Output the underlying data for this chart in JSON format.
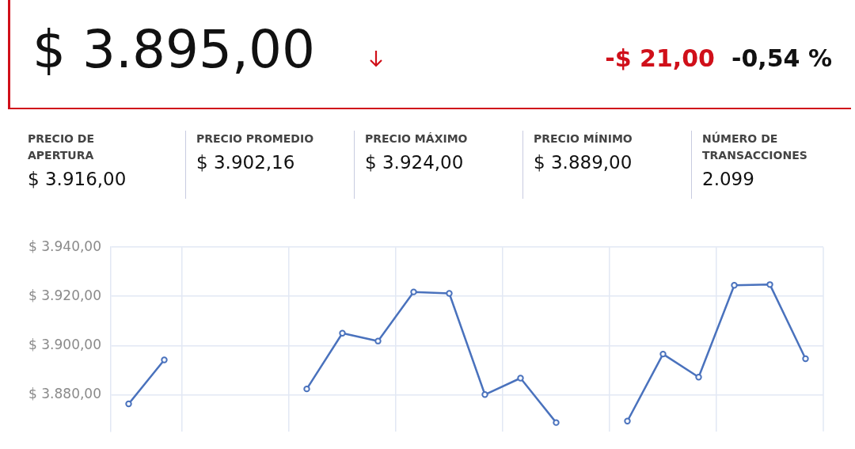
{
  "chart_data": [
    {
      "type": "other",
      "title": "$ 3.895,00",
      "annotations": [
        "-$ 21,00",
        "-0,54 %",
        "PRECIO DE APERTURA",
        "$ 3.916,00",
        "PRECIO PROMEDIO",
        "$ 3.902,16",
        "PRECIO MÁXIMO",
        "$ 3.924,00",
        "PRECIO MÍNIMO",
        "$ 3.889,00",
        "NÚMERO DE TRANSACCIONES",
        "2.099"
      ]
    },
    {
      "type": "line",
      "categories": [
        null,
        null,
        null,
        null,
        null,
        null,
        null,
        null,
        null,
        null,
        null,
        null,
        null,
        null,
        null,
        null,
        null,
        null,
        null,
        null
      ],
      "series": [
        {
          "color": "#4a72bd",
          "values": [
            3876.2,
            3894.1,
            null,
            null,
            null,
            3882.3,
            3905,
            3901.8,
            3921.8,
            3921.2,
            3880,
            3886.7,
            3868.6,
            null,
            3869.2,
            3896.5,
            3887.1,
            3924.5,
            3924.8,
            3894.6
          ]
        }
      ],
      "ylim": [
        3865,
        3940
      ],
      "yticks": [
        {
          "value": 3880,
          "label": "$ 3.880,00"
        },
        {
          "value": 3900,
          "label": "$ 3.900,00"
        },
        {
          "value": 3920,
          "label": "$ 3.920,00"
        },
        {
          "value": 3940,
          "label": "$ 3.940,00"
        }
      ],
      "tick_labels": "y",
      "grid": true,
      "legend": false,
      "marker": "circle",
      "line_style": "solid"
    }
  ]
}
